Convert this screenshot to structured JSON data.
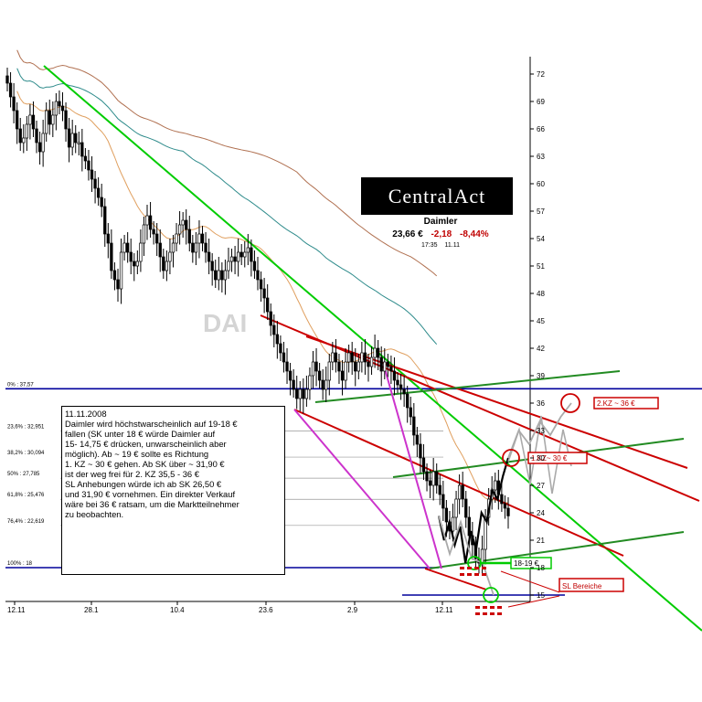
{
  "chart_data": {
    "type": "candlestick",
    "instrument": "Daimler",
    "x_ticks": [
      "12.11",
      "28.1",
      "10.4",
      "23.6",
      "2.9",
      "12.11"
    ],
    "y_ticks": [
      72,
      69,
      66,
      63,
      60,
      57,
      54,
      51,
      48,
      45,
      42,
      39,
      36,
      33,
      30,
      27,
      24,
      21,
      18,
      15
    ],
    "ylim": [
      14,
      73
    ],
    "grid": false,
    "series": [
      {
        "values": [
          71,
          69.5,
          68,
          66,
          64.5,
          65,
          66.5,
          67.5,
          66,
          64.5,
          63.5,
          65.5,
          68,
          66.5,
          67.5,
          69,
          68.5,
          68,
          66,
          64,
          65.5,
          64.5,
          64.5,
          63,
          62.5,
          61.5,
          60.5,
          59.5,
          58.5,
          57.5,
          54.5,
          53.5,
          50.5,
          49.5,
          48.5,
          52.5,
          53.5,
          52.5,
          51.5,
          51,
          51.5,
          53.5,
          55.5,
          56.5,
          55,
          54.5,
          53.5,
          52,
          50.5,
          51.5,
          52.5,
          53.5,
          54.5,
          55.5,
          56,
          55,
          53.5,
          52.5,
          53.5,
          54.5,
          53.5,
          52.5,
          51.5,
          50.5,
          49.5,
          50.5,
          49.5,
          50.5,
          51.5,
          52,
          51.5,
          52.5,
          52,
          52.5,
          53,
          51.5,
          50.5,
          49.5,
          48.5,
          47.5,
          46,
          44.5,
          43.5,
          42.5,
          41.5,
          40.5,
          39.5,
          38.5,
          37.5,
          36.5,
          37.5,
          36.5,
          37.5,
          39,
          40.5,
          39.5,
          38.5,
          37.5,
          38.5,
          40.5,
          41.5,
          40.5,
          39.5,
          38.5,
          40.5,
          41.5,
          40.5,
          39.5,
          40.5,
          41.5,
          40.5,
          40,
          41,
          42,
          41,
          39.5,
          40.5,
          40,
          39.5,
          38.5,
          38,
          37.5,
          37,
          35.5,
          34.5,
          32.5,
          31.5,
          30,
          28.5,
          27.5,
          27,
          28.5,
          27,
          26,
          24.5,
          23,
          22,
          23.5,
          25.5,
          27,
          25.5,
          23.5,
          21.5,
          20.5,
          19,
          18.5,
          20,
          23.5,
          25.5,
          26.5,
          27.5,
          26,
          25,
          24.5,
          23.66
        ]
      },
      {
        "name": "projection-1",
        "x": [
          "12.11",
          "12.11",
          "12.11",
          "12.11",
          "12.11",
          "12.11",
          "12.11",
          "12.11",
          "12.11",
          "12.11",
          "12.11",
          "12.11",
          "12.11",
          "12.11"
        ],
        "values": [
          23.66,
          21,
          23,
          20.5,
          22.5,
          18.5,
          22,
          20,
          24,
          23,
          26.5,
          25.5,
          28,
          30
        ]
      },
      {
        "name": "projection-2",
        "values": [
          30,
          33,
          31.5,
          34,
          32.5,
          34.5,
          36
        ]
      },
      {
        "name": "projection-alt",
        "values": [
          23.66,
          19.5,
          23,
          19,
          18.5,
          15
        ]
      }
    ],
    "fib_levels": [
      {
        "label": "0% : 37,57",
        "value": 37.57
      },
      {
        "label": "23,6% : 32,951",
        "value": 32.951
      },
      {
        "label": "38,2% : 30,094",
        "value": 30.094
      },
      {
        "label": "50% : 27,785",
        "value": 27.785
      },
      {
        "label": "61,8% : 25,476",
        "value": 25.476
      },
      {
        "label": "76,4% : 22,619",
        "value": 22.619
      },
      {
        "label": "100% : 18",
        "value": 18
      }
    ],
    "annotations": [
      {
        "text": "2.KZ ~ 36 €",
        "value": 36
      },
      {
        "text": "1.KZ~ 30 €",
        "value": 30
      },
      {
        "text": "18-19 €",
        "value": 18.5
      },
      {
        "text": "SL Bereiche",
        "value": 15
      }
    ],
    "watermark": "DAI"
  },
  "logo": "CentralAct",
  "quote": {
    "name": "Daimler",
    "price": "23,66 €",
    "change_abs": "-2,18",
    "change_pct": "-8,44%",
    "time": "17:35",
    "date": "11.11"
  },
  "note": {
    "lines": [
      "11.11.2008",
      "Daimler wird höchstwarscheinlich auf 19-18 €",
      "fallen (SK unter 18 € würde Daimler auf",
      "15- 14,75 € drücken,  unwarscheinlich aber",
      "möglich). Ab ~ 19 € sollte es Richtung",
      "1. KZ ~ 30 € gehen. Ab SK über ~ 31,90 €",
      "ist der weg frei für 2. KZ 35,5 - 36 €",
      "SL Anhebungen würde ich ab SK 26,50 €",
      "und 31,90 € vornehmen. Ein direkter Verkauf",
      "wäre bei 36 € ratsam, um die Marktteilnehmer",
      "zu beobachten."
    ]
  },
  "colors": {
    "candle": "#000000",
    "trend_green": "#00cc00",
    "channel_red": "#cc0000",
    "channel_green": "#228b22",
    "fib_blue": "#00009c",
    "magenta": "#cc33cc",
    "ma_tan": "#e0a060",
    "ma_teal": "#2e8b8b",
    "ma_brown": "#b07050",
    "projection_grey": "#aaaaaa"
  }
}
